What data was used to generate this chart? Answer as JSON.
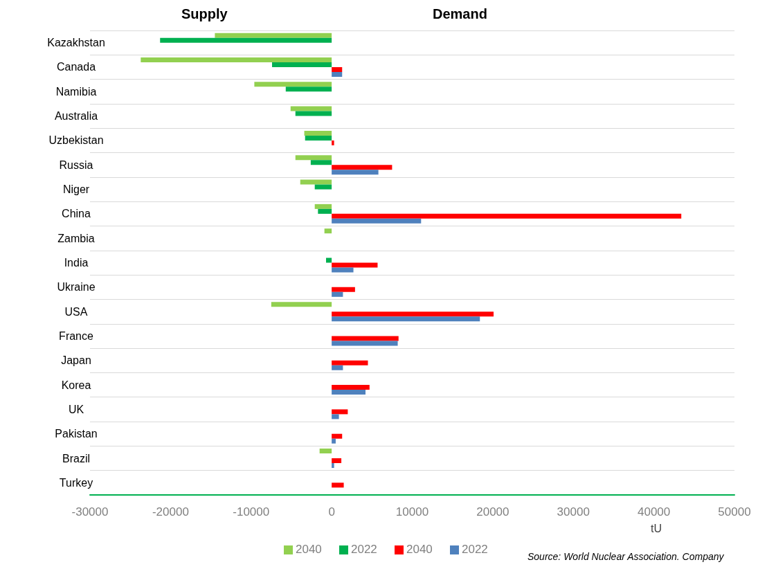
{
  "chart_data": {
    "type": "bar",
    "orientation": "horizontal",
    "xlabel": "tU",
    "categories": [
      "Kazakhstan",
      "Canada",
      "Namibia",
      "Australia",
      "Uzbekistan",
      "Russia",
      "Niger",
      "China",
      "Zambia",
      "India",
      "Ukraine",
      "USA",
      "France",
      "Japan",
      "Korea",
      "UK",
      "Pakistan",
      "Brazil",
      "Turkey"
    ],
    "series": [
      {
        "name": "2040",
        "color": "#92d050",
        "values": [
          -14500,
          -23700,
          -9600,
          -5100,
          -3400,
          -4500,
          -3900,
          -2100,
          -900,
          null,
          null,
          -7500,
          null,
          null,
          null,
          null,
          null,
          -1500,
          null
        ]
      },
      {
        "name": "2022",
        "color": "#00b050",
        "values": [
          -21300,
          -7400,
          -5700,
          -4500,
          -3300,
          -2600,
          -2100,
          -1700,
          null,
          -700,
          null,
          null,
          null,
          null,
          null,
          null,
          null,
          null,
          null
        ]
      },
      {
        "name": "2040",
        "color": "#ff0000",
        "values": [
          null,
          1300,
          null,
          null,
          300,
          7500,
          null,
          43400,
          null,
          5700,
          2900,
          20100,
          8300,
          4500,
          4700,
          2000,
          1300,
          1200,
          1500
        ]
      },
      {
        "name": "2022",
        "color": "#4f81bd",
        "values": [
          null,
          1300,
          null,
          null,
          null,
          5800,
          null,
          11100,
          null,
          2700,
          1400,
          18400,
          8200,
          1400,
          4200,
          900,
          500,
          300,
          null
        ]
      }
    ],
    "xlim": [
      -30000,
      50000
    ],
    "xticks": [
      -30000,
      -20000,
      -10000,
      0,
      10000,
      20000,
      30000,
      40000,
      50000
    ],
    "grid": "y",
    "legend": "bottom",
    "annotations": [
      "Supply",
      "Demand",
      "Source: World Nuclear Association. Company"
    ]
  }
}
